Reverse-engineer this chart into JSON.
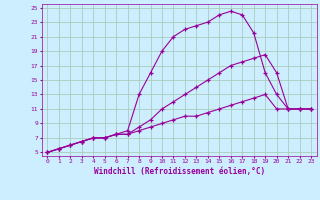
{
  "xlabel": "Windchill (Refroidissement éolien,°C)",
  "bg_color": "#cceeff",
  "grid_color": "#aaccbb",
  "line_color": "#990099",
  "xlim": [
    -0.5,
    23.5
  ],
  "ylim": [
    4.5,
    25.5
  ],
  "xticks": [
    0,
    1,
    2,
    3,
    4,
    5,
    6,
    7,
    8,
    9,
    10,
    11,
    12,
    13,
    14,
    15,
    16,
    17,
    18,
    19,
    20,
    21,
    22,
    23
  ],
  "yticks": [
    5,
    7,
    9,
    11,
    13,
    15,
    17,
    19,
    21,
    23,
    25
  ],
  "series": [
    {
      "x": [
        0,
        1,
        2,
        3,
        4,
        5,
        6,
        7,
        8,
        9,
        10,
        11,
        12,
        13,
        14,
        15,
        16,
        17,
        18,
        19,
        20,
        21,
        22,
        23
      ],
      "y": [
        5,
        5.5,
        6,
        6.5,
        7,
        7,
        7.5,
        7.5,
        8,
        8.5,
        9,
        9.5,
        10,
        10,
        10.5,
        11,
        11.5,
        12,
        12.5,
        13,
        11,
        11,
        11,
        11
      ]
    },
    {
      "x": [
        0,
        1,
        2,
        3,
        4,
        5,
        6,
        7,
        8,
        9,
        10,
        11,
        12,
        13,
        14,
        15,
        16,
        17,
        18,
        19,
        20,
        21,
        22,
        23
      ],
      "y": [
        5,
        5.5,
        6,
        6.5,
        7,
        7,
        7.5,
        7.5,
        8.5,
        9.5,
        11,
        12,
        13,
        14,
        15,
        16,
        17,
        17.5,
        18,
        18.5,
        16,
        11,
        11,
        11
      ]
    },
    {
      "x": [
        0,
        1,
        2,
        3,
        4,
        5,
        6,
        7,
        8,
        9,
        10,
        11,
        12,
        13,
        14,
        15,
        16,
        17,
        18,
        19,
        20,
        21,
        22,
        23
      ],
      "y": [
        5,
        5.5,
        6,
        6.5,
        7,
        7,
        7.5,
        8,
        13,
        16,
        19,
        21,
        22,
        22.5,
        23,
        24,
        24.5,
        24,
        21.5,
        16,
        13,
        11,
        11,
        11
      ]
    }
  ]
}
